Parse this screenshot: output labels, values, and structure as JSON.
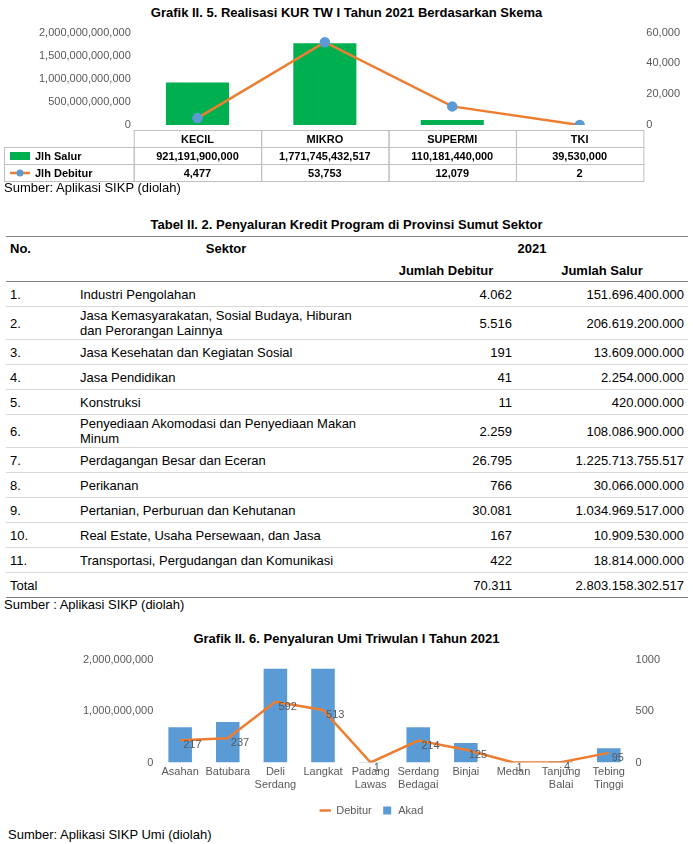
{
  "chart_data": [
    {
      "type": "bar",
      "title": "Grafik II. 5. Realisasi KUR TW I Tahun 2021 Berdasarkan Skema",
      "categories": [
        "KECIL",
        "MIKRO",
        "SUPERMI",
        "TKI"
      ],
      "series": [
        {
          "name": "Jlh Salur",
          "color": "#00b050",
          "values": [
            921191900000,
            1771745432517,
            110181440000,
            39530000
          ],
          "value_labels": [
            "921,191,900,000",
            "1,771,745,432,517",
            "110,181,440,000",
            "39,530,000"
          ]
        },
        {
          "name": "Jlh Debitur",
          "type": "line",
          "color": "#ed7d31",
          "marker": "circle",
          "axis": "y2",
          "values": [
            4477,
            53753,
            12079,
            2
          ],
          "value_labels": [
            "4,477",
            "53,753",
            "12,079",
            "2"
          ]
        }
      ],
      "ylim": [
        0,
        2000000000000
      ],
      "yticks": [
        0,
        {
          "value": 500000000000,
          "label": "500,000,000,000"
        },
        {
          "value": 1000000000000,
          "label": "1,000,000,000,000"
        },
        {
          "value": 1500000000000,
          "label": "1,500,000,000,000"
        },
        {
          "value": 2000000000000,
          "label": "2,000,000,000,000"
        }
      ],
      "y2lim": [
        0,
        60000
      ],
      "y2ticks": [
        0,
        {
          "value": 20000,
          "label": "20,000"
        },
        {
          "value": 40000,
          "label": "40,000"
        },
        {
          "value": 60000,
          "label": "60,000"
        }
      ],
      "grid": false,
      "source": "Sumber: Aplikasi SIKP (diolah)"
    },
    {
      "type": "bar",
      "title": "Grafik II. 6. Penyaluran Umi Triwulan I Tahun 2021",
      "categories": [
        "Asahan",
        "Batubara",
        "Deli Serdang",
        "Langkat",
        "Padang Lawas",
        "Serdang Bedagai",
        "Binjai",
        "Medan",
        "Tanjung Balai",
        "Tebing Tinggi"
      ],
      "series": [
        {
          "name": "Akad",
          "color": "#5b9bd5",
          "values": [
            690000000,
            790000000,
            1830000000,
            1830000000,
            10000000,
            690000000,
            380000000,
            5000000,
            20000000,
            280000000
          ]
        },
        {
          "name": "Debitur",
          "type": "line",
          "color": "#ed7d31",
          "marker": "none",
          "axis": "y2",
          "data_labels": true,
          "values": [
            217,
            237,
            592,
            513,
            1,
            214,
            125,
            1,
            4,
            95
          ]
        }
      ],
      "ylim": [
        0,
        2000000000
      ],
      "yticks": [
        0,
        {
          "value": 1000000000,
          "label": "1,000,000,000"
        },
        {
          "value": 2000000000,
          "label": "2,000,000,000"
        }
      ],
      "y2lim": [
        0,
        1000
      ],
      "y2ticks": [
        0,
        500,
        1000
      ],
      "grid": false,
      "legend": "bottom",
      "source": "Sumber: Aplikasi SIKP Umi (diolah)"
    }
  ],
  "table": {
    "title": "Tabel II. 2. Penyaluran Kredit Program di Provinsi Sumut Sektor",
    "header": [
      "No.",
      "Sektor",
      "2021"
    ],
    "subheader": [
      "Jumlah Debitur",
      "Jumlah Salur"
    ],
    "rows": [
      [
        "1.",
        "Industri Pengolahan",
        "4.062",
        "151.696.400.000"
      ],
      [
        "2.",
        "Jasa Kemasyarakatan, Sosial Budaya, Hiburan dan Perorangan Lainnya",
        "5.516",
        "206.619.200.000"
      ],
      [
        "3.",
        "Jasa Kesehatan dan Kegiatan Sosial",
        "191",
        "13.609.000.000"
      ],
      [
        "4.",
        "Jasa Pendidikan",
        "41",
        "2.254.000.000"
      ],
      [
        "5.",
        "Konstruksi",
        "11",
        "420.000.000"
      ],
      [
        "6.",
        "Penyediaan Akomodasi dan Penyediaan Makan Minum",
        "2.259",
        "108.086.900.000"
      ],
      [
        "7.",
        "Perdagangan Besar dan Eceran",
        "26.795",
        "1.225.713.755.517"
      ],
      [
        "8.",
        "Perikanan",
        "766",
        "30.066.000.000"
      ],
      [
        "9.",
        "Pertanian, Perburuan dan Kehutanan",
        "30.081",
        "1.034.969.517.000"
      ],
      [
        "10.",
        "Real Estate, Usaha Persewaan, dan Jasa",
        "167",
        "10.909.530.000"
      ],
      [
        "11.",
        "Transportasi, Pergudangan dan Komunikasi",
        "422",
        "18.814.000.000"
      ]
    ],
    "total": [
      "Total",
      "70.311",
      "2.803.158.302.517"
    ],
    "source": "Sumber : Aplikasi SIKP (diolah)"
  }
}
